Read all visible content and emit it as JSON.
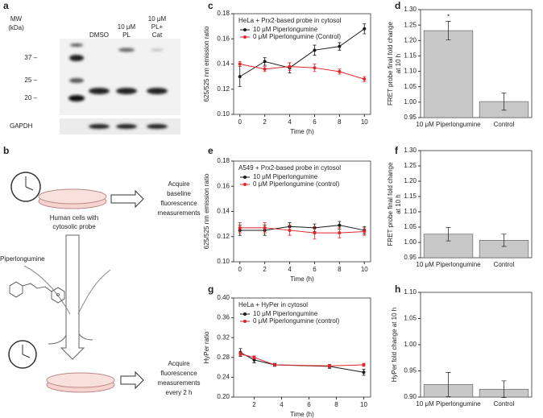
{
  "blot": {
    "panel": "a",
    "mw_label": [
      "MW",
      "(kDa)"
    ],
    "lanes": [
      [
        "DMSO"
      ],
      [
        "10 μM",
        "PL"
      ],
      [
        "10 μM",
        "PL+",
        "Cat"
      ]
    ],
    "markers": [
      "37 –",
      "25 –",
      "20 –"
    ],
    "loading": "GAPDH"
  },
  "schematic": {
    "panel": "b",
    "cells": [
      "Human cells with",
      "cytosolic probe"
    ],
    "step1": [
      "Acquire",
      "baseline",
      "fluorescence",
      "measurements"
    ],
    "drug": "Piperlongumine",
    "step2": [
      "Acquire",
      "fluorescence",
      "measurements",
      "every 2 h"
    ]
  },
  "chart_data": [
    {
      "type": "line",
      "panel": "c",
      "title": "HeLa + Prx2-based probe in cytosol",
      "xlabel": "Time (h)",
      "ylabel": "625/525 nm emission ratio",
      "x": [
        0,
        2,
        4,
        6,
        8,
        10
      ],
      "xlim": [
        -0.5,
        10.5
      ],
      "xticks": [
        0,
        2,
        4,
        6,
        8,
        10
      ],
      "ylim": [
        0.1,
        0.18
      ],
      "yticks": [
        {
          "value": 0.1,
          "label": "0.10"
        },
        0.12,
        0.14,
        0.16,
        0.18
      ],
      "series": [
        {
          "name": "10 μM Piperlongumine",
          "color": "#1a1a1a",
          "values": [
            0.13,
            0.142,
            0.137,
            0.151,
            0.154,
            0.168
          ],
          "errors": [
            0.008,
            0.003,
            0.004,
            0.004,
            0.003,
            0.004
          ]
        },
        {
          "name": "0 μM Piperlongumine (Control)",
          "color": "#e0262b",
          "values": [
            0.14,
            0.136,
            0.138,
            0.137,
            0.134,
            0.128
          ],
          "errors": [
            0.002,
            0.002,
            0.003,
            0.003,
            0.002,
            0.002
          ]
        }
      ]
    },
    {
      "type": "bar",
      "panel": "d",
      "ylabel": [
        "FRET probe final fold change",
        "at 10 h"
      ],
      "categories": [
        "10 μM Piperlongumine",
        "Control"
      ],
      "values": [
        1.232,
        1.002
      ],
      "errors": [
        0.03,
        0.028
      ],
      "color": "#c8c8c8",
      "annotation": "*",
      "ylim": [
        0.95,
        1.3
      ],
      "yticks": [
        0.95,
        {
          "value": 1.0,
          "label": "1.00"
        },
        1.05,
        {
          "value": 1.1,
          "label": "1.10"
        },
        1.15,
        {
          "value": 1.2,
          "label": "1.20"
        },
        1.25,
        {
          "value": 1.3,
          "label": "1.30"
        }
      ]
    },
    {
      "type": "line",
      "panel": "e",
      "title": "A549 + Prx2-based probe in cytosol",
      "xlabel": "Time (h)",
      "ylabel": "625/525 nm emission ratio",
      "x": [
        0,
        2,
        4,
        6,
        8,
        10
      ],
      "xlim": [
        -0.5,
        10.5
      ],
      "xticks": [
        0,
        2,
        4,
        6,
        8,
        10
      ],
      "ylim": [
        0.1,
        0.18
      ],
      "yticks": [
        {
          "value": 0.1,
          "label": "0.10"
        },
        0.12,
        0.14,
        0.16,
        0.18
      ],
      "series": [
        {
          "name": "10 μM Piperlongumine",
          "color": "#1a1a1a",
          "values": [
            0.125,
            0.125,
            0.128,
            0.127,
            0.129,
            0.125
          ],
          "errors": [
            0.004,
            0.004,
            0.003,
            0.003,
            0.003,
            0.003
          ]
        },
        {
          "name": "0 μM Piperlongumine (control)",
          "color": "#e0262b",
          "values": [
            0.127,
            0.127,
            0.125,
            0.123,
            0.123,
            0.124
          ],
          "errors": [
            0.004,
            0.004,
            0.004,
            0.005,
            0.004,
            0.003
          ]
        }
      ]
    },
    {
      "type": "bar",
      "panel": "f",
      "ylabel": [
        "FRET probe final fold change",
        "at 10 h"
      ],
      "categories": [
        "10 μM Piperlongumine",
        "Control"
      ],
      "values": [
        1.027,
        1.007
      ],
      "errors": [
        0.022,
        0.02
      ],
      "color": "#c8c8c8",
      "ylim": [
        0.95,
        1.3
      ],
      "yticks": [
        0.95,
        {
          "value": 1.0,
          "label": "1.00"
        },
        1.05,
        {
          "value": 1.1,
          "label": "1.10"
        },
        1.15,
        {
          "value": 1.2,
          "label": "1.20"
        },
        1.25,
        {
          "value": 1.3,
          "label": "1.30"
        }
      ]
    },
    {
      "type": "line",
      "panel": "g",
      "title": "HeLa + HyPer in cytosol",
      "xlabel": "Time (h)",
      "ylabel": "HyPer ratio",
      "x": [
        1,
        2,
        3.5,
        7.5,
        10
      ],
      "xlim": [
        0.5,
        10.5
      ],
      "xticks": [
        2,
        4,
        6,
        8,
        10
      ],
      "ylim": [
        0.2,
        0.4
      ],
      "yticks": [
        {
          "value": 0.2,
          "label": "0.20"
        },
        0.24,
        0.28,
        0.32,
        0.36,
        {
          "value": 0.4,
          "label": "0.40"
        }
      ],
      "series": [
        {
          "name": "10 μM Piperlongumine",
          "color": "#1a1a1a",
          "values": [
            0.29,
            0.275,
            0.265,
            0.262,
            0.25
          ],
          "errors": [
            0.008,
            0.006,
            0.003,
            0.004,
            0.006
          ]
        },
        {
          "name": "0 μM Piperlongumine (control)",
          "color": "#e0262b",
          "values": [
            0.287,
            0.28,
            0.265,
            0.263,
            0.265
          ],
          "errors": [
            0.004,
            0.003,
            0.002,
            0.003,
            0.003
          ]
        }
      ]
    },
    {
      "type": "bar",
      "panel": "h",
      "ylabel": [
        "HyPer fold change at 10 h"
      ],
      "categories": [
        "10 μM Piperlongumine",
        "Control"
      ],
      "values": [
        0.924,
        0.915
      ],
      "errors": [
        0.023,
        0.016
      ],
      "color": "#c8c8c8",
      "ylim": [
        0.9,
        1.1
      ],
      "yticks": [
        {
          "value": 0.9,
          "label": "0.90"
        },
        0.95,
        {
          "value": 1.0,
          "label": "1.00"
        },
        1.05,
        {
          "value": 1.1,
          "label": "1.10"
        }
      ]
    }
  ]
}
